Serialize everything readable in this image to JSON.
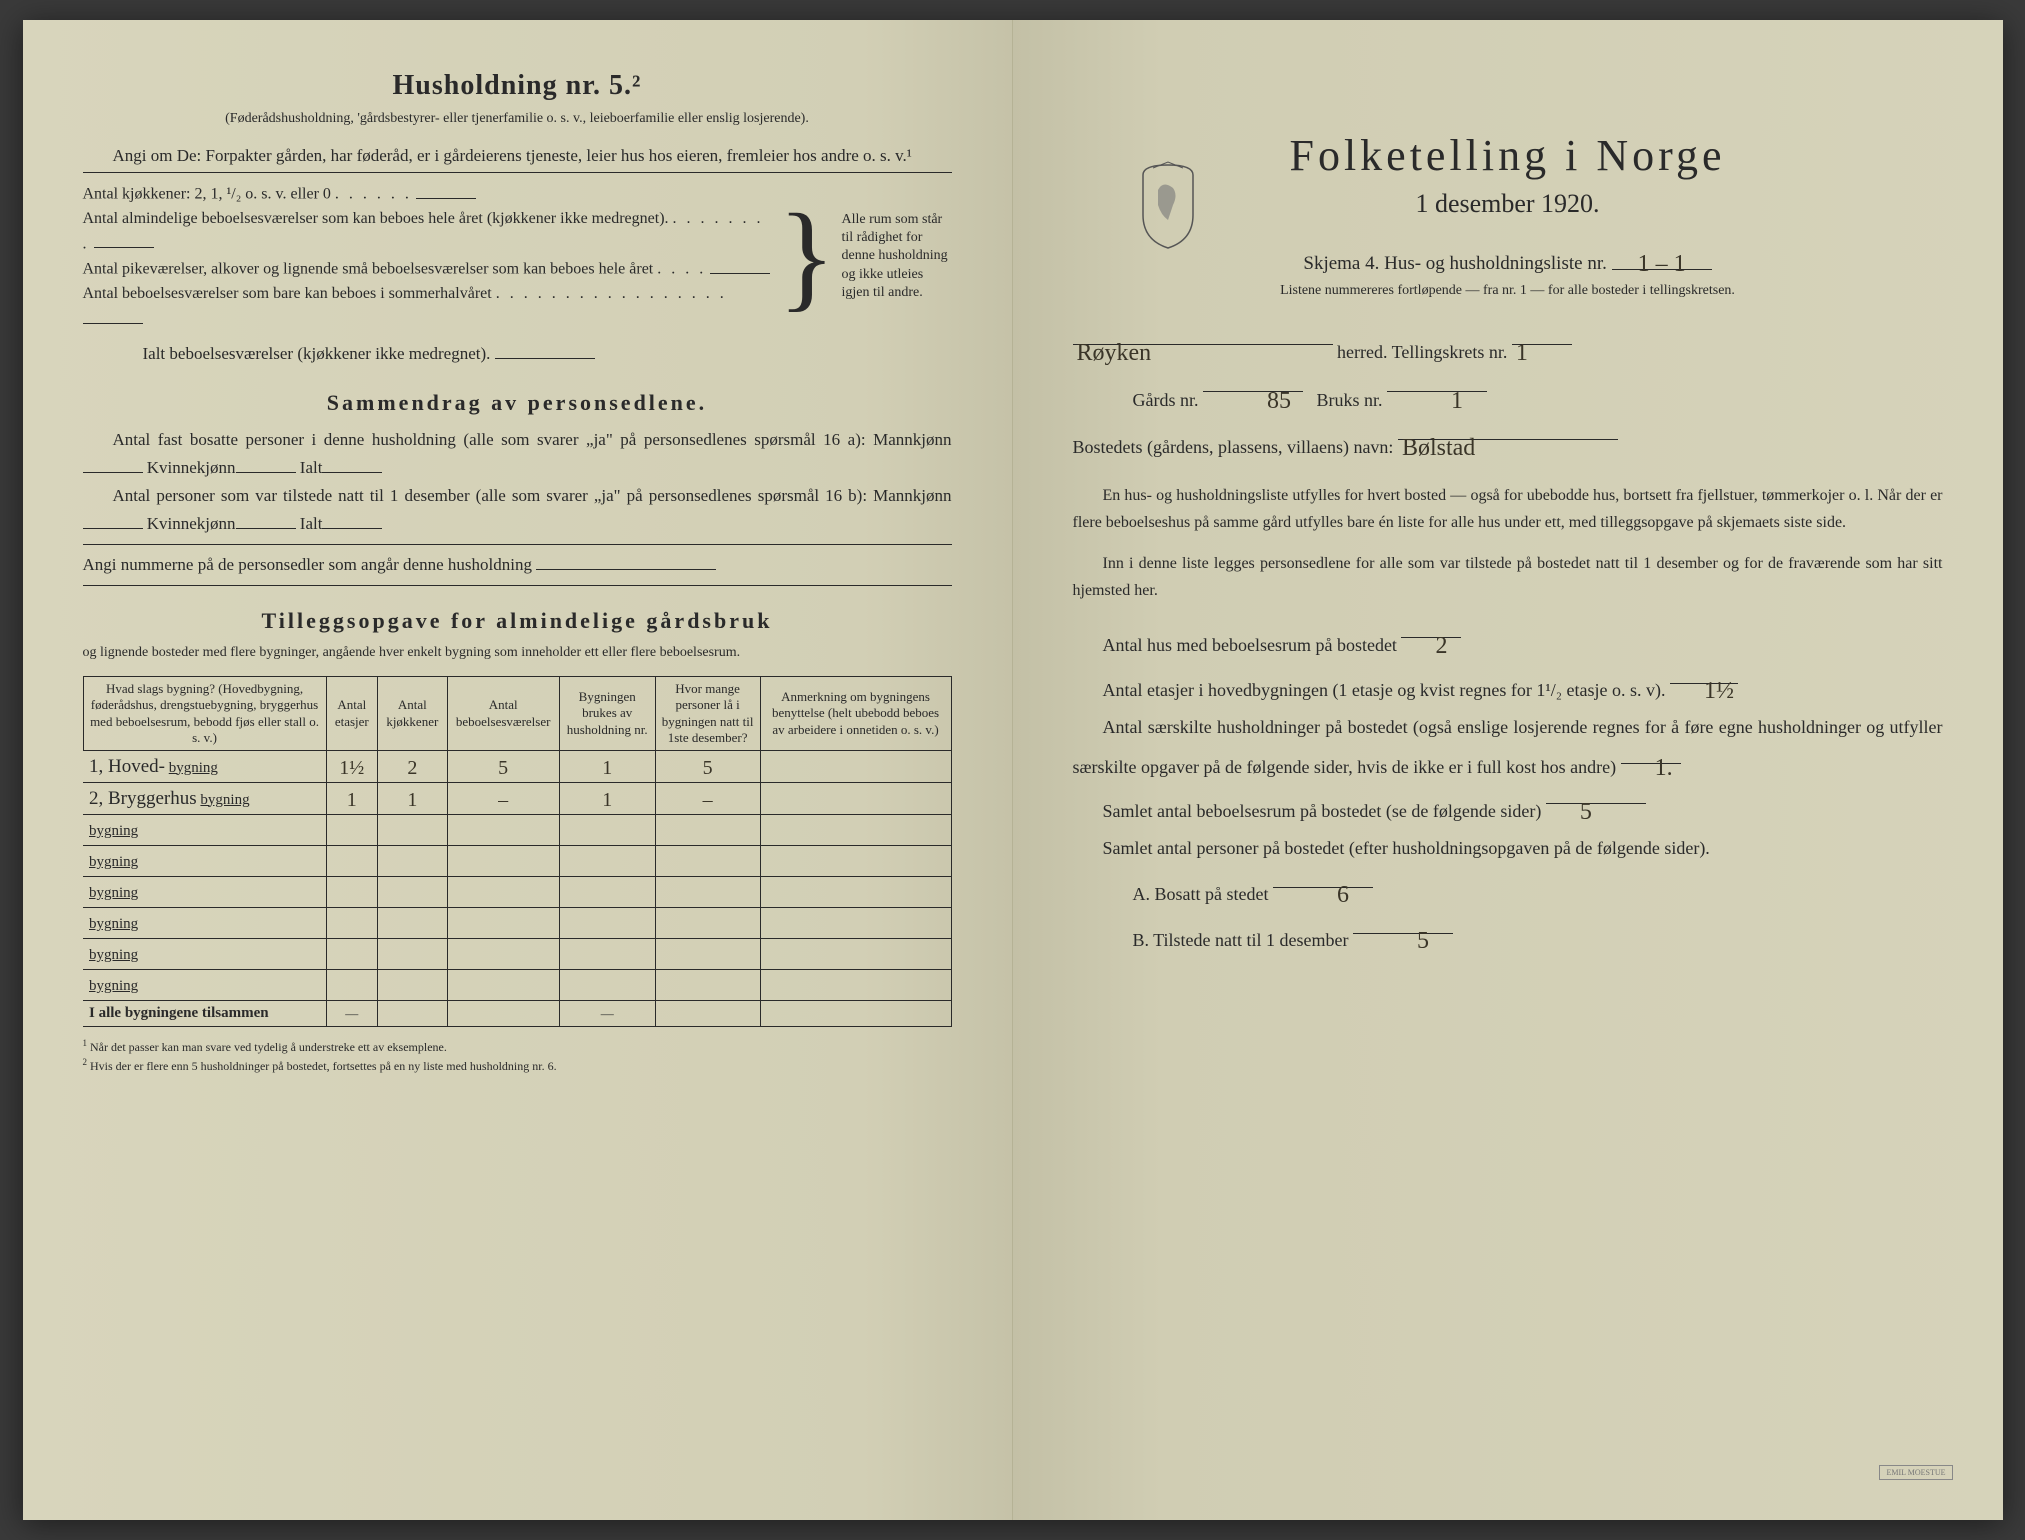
{
  "left": {
    "heading": "Husholdning nr. 5.²",
    "heading_sub": "(Føderådshusholdning, 'gårdsbestyrer- eller tjenerfamilie o. s. v., leieboerfamilie eller enslig losjerende).",
    "intro": "Angi om De: Forpakter gården, har føderåd, er i gårdeierens tjeneste, leier hus hos eieren, fremleier hos andre o. s. v.¹",
    "kjokken_line": "Antal kjøkkener: 2, 1, ¹/₂ o. s. v. eller 0",
    "brace_lines": [
      "Antal almindelige beboelsesværelser som kan beboes hele året (kjøkkener ikke medregnet).",
      "Antal pikeværelser, alkover og lignende små beboelsesværelser som kan beboes hele året",
      "Antal beboelsesværelser som bare kan beboes i sommerhalvåret"
    ],
    "brace_right": "Alle rum som står til rådighet for denne husholdning og ikke utleies igjen til andre.",
    "ialt_line": "Ialt beboelsesværelser (kjøkkener ikke medregnet).",
    "sammendrag_title": "Sammendrag av personsedlene.",
    "sammen_1a": "Antal fast bosatte personer i denne husholdning (alle som svarer „ja\" på personsedlenes spørsmål 16 a): Mannkjønn",
    "sammen_1b": "Kvinnekjønn",
    "sammen_1c": "Ialt",
    "sammen_2a": "Antal personer som var tilstede natt til 1 desember (alle som svarer „ja\" på personsedlenes spørsmål 16 b): Mannkjønn",
    "angi_num": "Angi nummerne på de personsedler som angår denne husholdning",
    "tillegg_title": "Tilleggsopgave for almindelige gårdsbruk",
    "tillegg_sub": "og lignende bosteder med flere bygninger, angående hver enkelt bygning som inneholder ett eller flere beboelsesrum.",
    "table": {
      "headers": [
        "Hvad slags bygning?\n(Hovedbygning, føderådshus, drengstuebygning, bryggerhus med beboelsesrum, bebodd fjøs eller stall o. s. v.)",
        "Antal etasjer",
        "Antal kjøkkener",
        "Antal beboelsesværelser",
        "Bygningen brukes av husholdning nr.",
        "Hvor mange personer lå i bygningen natt til 1ste desember?",
        "Anmerkning om bygningens benyttelse (helt ubebodd beboes av arbeidere i onnetiden o. s. v.)"
      ],
      "rows": [
        {
          "prefix": "1, Hoved-",
          "label": "bygning",
          "cells": [
            "1½",
            "2",
            "5",
            "1",
            "5",
            ""
          ]
        },
        {
          "prefix": "2, Bryggerhus",
          "label": "bygning",
          "cells": [
            "1",
            "1",
            "–",
            "1",
            "–",
            ""
          ]
        },
        {
          "prefix": "",
          "label": "bygning",
          "cells": [
            "",
            "",
            "",
            "",
            "",
            ""
          ]
        },
        {
          "prefix": "",
          "label": "bygning",
          "cells": [
            "",
            "",
            "",
            "",
            "",
            ""
          ]
        },
        {
          "prefix": "",
          "label": "bygning",
          "cells": [
            "",
            "",
            "",
            "",
            "",
            ""
          ]
        },
        {
          "prefix": "",
          "label": "bygning",
          "cells": [
            "",
            "",
            "",
            "",
            "",
            ""
          ]
        },
        {
          "prefix": "",
          "label": "bygning",
          "cells": [
            "",
            "",
            "",
            "",
            "",
            ""
          ]
        },
        {
          "prefix": "",
          "label": "bygning",
          "cells": [
            "",
            "",
            "",
            "",
            "",
            ""
          ]
        }
      ],
      "total_label": "I alle bygningene tilsammen",
      "total_cells": [
        "—",
        "",
        "",
        "—",
        "",
        ""
      ]
    },
    "footnote1": "Når det passer kan man svare ved tydelig å understreke ett av eksemplene.",
    "footnote2": "Hvis der er flere enn 5 husholdninger på bostedet, fortsettes på en ny liste med husholdning nr. 6."
  },
  "right": {
    "title": "Folketelling i Norge",
    "date": "1 desember 1920.",
    "skjema_pre": "Skjema 4.  Hus- og husholdningsliste nr.",
    "skjema_val": "1 – 1",
    "listnote": "Listene nummereres fortløpende — fra nr. 1 — for alle bosteder i tellingskretsen.",
    "herred_val": "Røyken",
    "herred_lbl": "herred.  Tellingskrets nr.",
    "krets_val": "1",
    "gard_lbl": "Gårds nr.",
    "gard_val": "85",
    "bruk_lbl": "Bruks nr.",
    "bruk_val": "1",
    "bosted_lbl": "Bostedets (gårdens, plassens, villaens) navn:",
    "bosted_val": "Bølstad",
    "para1": "En hus- og husholdningsliste utfylles for hvert bosted — også for ubebodde hus, bortsett fra fjellstuer, tømmerkojer o. l.  Når der er flere beboelseshus på samme gård utfylles bare én liste for alle hus under ett, med tilleggsopgave på skjemaets siste side.",
    "para2": "Inn i denne liste legges personsedlene for alle som var tilstede på bostedet natt til 1 desember og for de fraværende som har sitt hjemsted her.",
    "stat1_lbl": "Antal hus med beboelsesrum på bostedet",
    "stat1_val": "2",
    "stat2_lbl_a": "Antal etasjer i hovedbygningen (1 etasje og kvist regnes for 1¹/₂ etasje o. s. v).",
    "stat2_val": "1½",
    "stat3_lbl": "Antal særskilte husholdninger på bostedet (også enslige losjerende regnes for å føre egne husholdninger og utfyller særskilte opgaver på de følgende sider, hvis de ikke er i full kost hos andre)",
    "stat3_val": "1.",
    "stat4_lbl": "Samlet antal beboelsesrum på bostedet (se de følgende sider)",
    "stat4_val": "5",
    "stat5_lbl": "Samlet antal personer på bostedet (efter husholdningsopgaven på de følgende sider).",
    "statA_lbl": "A.  Bosatt på stedet",
    "statA_val": "6",
    "statB_lbl": "B.  Tilstede natt til 1 desember",
    "statB_val": "5",
    "stamp": "EMIL MOESTUE"
  },
  "colors": {
    "paper": "#d4d1b8",
    "ink": "#2a2a2a",
    "handwriting": "#3a3528"
  }
}
